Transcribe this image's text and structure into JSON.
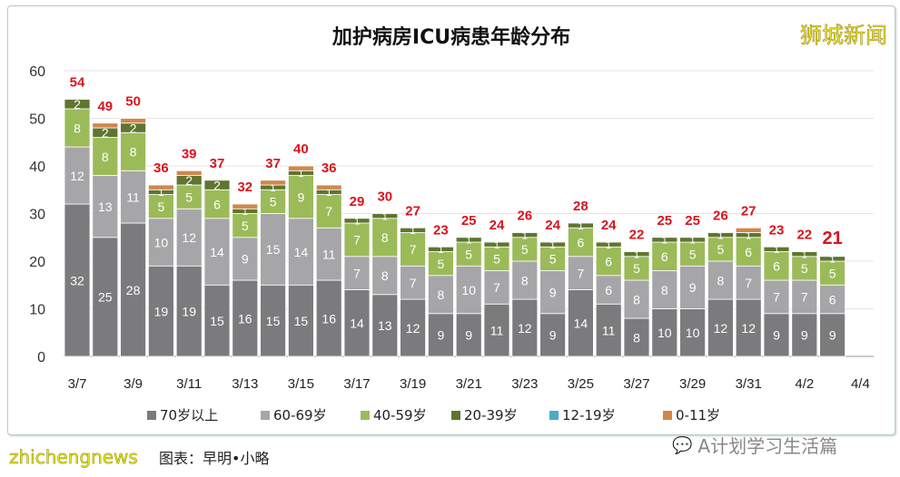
{
  "chart_data": {
    "type": "bar",
    "stacked": true,
    "title": "加护病房ICU病患年龄分布",
    "categories": [
      "3/7",
      "3/8",
      "3/9",
      "3/10",
      "3/11",
      "3/12",
      "3/13",
      "3/14",
      "3/15",
      "3/16",
      "3/17",
      "3/18",
      "3/19",
      "3/20",
      "3/21",
      "3/22",
      "3/23",
      "3/24",
      "3/25",
      "3/26",
      "3/27",
      "3/28",
      "3/29",
      "3/30",
      "3/31",
      "4/1",
      "4/2",
      "4/3"
    ],
    "xtick_labels": [
      "3/7",
      "3/9",
      "3/11",
      "3/13",
      "3/15",
      "3/17",
      "3/19",
      "3/21",
      "3/23",
      "3/25",
      "3/27",
      "3/29",
      "3/31",
      "4/2",
      "4/4"
    ],
    "ylim": [
      0,
      60
    ],
    "yticks": [
      0,
      10,
      20,
      30,
      40,
      50,
      60
    ],
    "grid": true,
    "legend_position": "bottom",
    "series": [
      {
        "name": "70岁以上",
        "color": "#7b7b7d",
        "values": [
          32,
          25,
          28,
          19,
          19,
          15,
          16,
          15,
          15,
          16,
          14,
          13,
          12,
          9,
          9,
          11,
          12,
          9,
          14,
          11,
          8,
          10,
          10,
          12,
          12,
          9,
          9,
          9
        ]
      },
      {
        "name": "60-69岁",
        "color": "#a6a6a8",
        "values": [
          12,
          13,
          11,
          10,
          12,
          14,
          9,
          15,
          14,
          11,
          7,
          8,
          7,
          8,
          10,
          7,
          8,
          9,
          7,
          6,
          8,
          8,
          9,
          8,
          7,
          7,
          7,
          6
        ]
      },
      {
        "name": "40-59岁",
        "color": "#9bbb59",
        "values": [
          8,
          8,
          8,
          5,
          5,
          6,
          5,
          5,
          9,
          7,
          7,
          8,
          7,
          5,
          5,
          5,
          5,
          5,
          6,
          6,
          5,
          6,
          5,
          5,
          6,
          6,
          5,
          5
        ]
      },
      {
        "name": "20-39岁",
        "color": "#5f7530",
        "values": [
          2,
          2,
          2,
          1,
          2,
          2,
          1,
          1,
          1,
          1,
          1,
          1,
          1,
          1,
          1,
          1,
          1,
          1,
          1,
          1,
          1,
          1,
          1,
          1,
          1,
          1,
          1,
          1
        ]
      },
      {
        "name": "12-19岁",
        "color": "#4bacc6",
        "values": [
          0,
          0,
          0,
          0,
          0,
          0,
          0,
          0,
          0,
          0,
          0,
          0,
          0,
          0,
          0,
          0,
          0,
          0,
          0,
          0,
          0,
          0,
          0,
          0,
          0,
          0,
          0,
          0
        ]
      },
      {
        "name": "0-11岁",
        "color": "#d0874a",
        "values": [
          0,
          1,
          1,
          1,
          1,
          0,
          1,
          1,
          1,
          1,
          0,
          0,
          0,
          0,
          0,
          0,
          0,
          0,
          0,
          0,
          0,
          0,
          0,
          0,
          1,
          0,
          0,
          0
        ]
      }
    ],
    "totals": [
      54,
      49,
      50,
      36,
      39,
      37,
      32,
      37,
      40,
      36,
      29,
      30,
      27,
      23,
      25,
      24,
      26,
      24,
      28,
      24,
      22,
      25,
      25,
      26,
      27,
      23,
      22,
      21
    ],
    "total_color": "#d9141c"
  },
  "brand": "狮城新闻",
  "watermarks": {
    "site": "zhichengnews",
    "credit": "图表：早明•小略",
    "wechat": "A计划学习生活篇"
  }
}
